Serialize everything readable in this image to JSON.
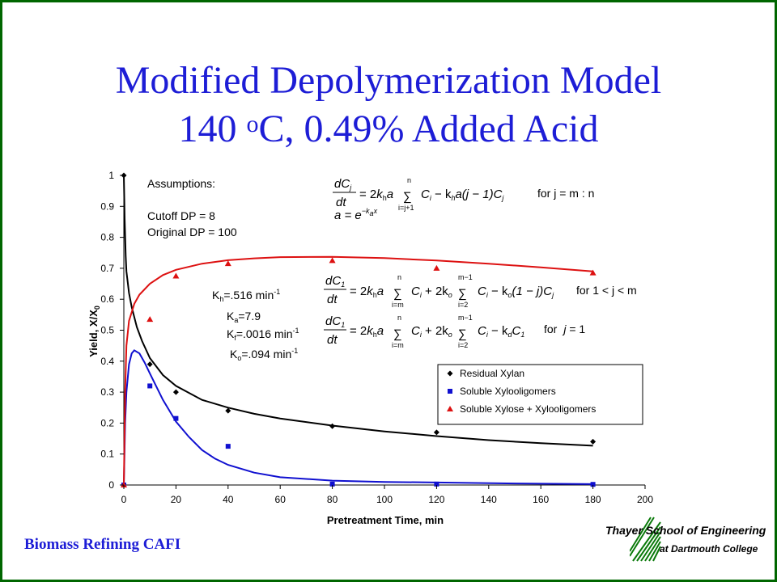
{
  "title": {
    "line1": "Modified Depolymerization Model",
    "line2_pre": "140 ",
    "line2_sup": "o",
    "line2_post": "C, 0.49% Added Acid"
  },
  "footer": {
    "left": "Biomass Refining CAFI",
    "logo_line1": "Thayer School of Engineering",
    "logo_line2": "at Dartmouth College"
  },
  "annotations": {
    "assumptions": "Assumptions:",
    "cutoff": "Cutoff DP = 8",
    "original": "Original DP = 100",
    "kh": "K",
    "kh_sub": "h",
    "kh_val": "=.516 min",
    "kh_exp": "-1",
    "ka": "K",
    "ka_sub": "a",
    "ka_val": "=7.9",
    "kf": "K",
    "kf_sub": "f",
    "kf_val": "=.0016 min",
    "kf_exp": "-1",
    "ko": "K",
    "ko_sub": "o",
    "ko_val": "=.094 min",
    "ko_exp": "-1",
    "cond1": "for j = m : n",
    "cond2": "for 1 < j < m",
    "cond3": "for",
    "cond3_j": "j",
    "cond3_val": " = 1"
  },
  "colors": {
    "residual": "#000000",
    "soluble_oligo": "#1010d0",
    "soluble_xylose": "#dd1111",
    "title": "#1d1dd6",
    "frame": "#006600"
  },
  "chart_data": {
    "type": "scatter",
    "xlabel": "Pretreatment Time, min",
    "ylabel": "Yield, X/X",
    "ylabel_sub": "0",
    "xlim": [
      0,
      200
    ],
    "ylim": [
      0,
      1
    ],
    "xticks": [
      0,
      20,
      40,
      60,
      80,
      100,
      120,
      140,
      160,
      180,
      200
    ],
    "yticks": [
      0,
      0.1,
      0.2,
      0.3,
      0.4,
      0.5,
      0.6,
      0.7,
      0.8,
      0.9,
      1
    ],
    "ytick_labels": [
      "0",
      "0.1",
      "0.2",
      "0.3",
      "0.4",
      "0.5",
      "0.6",
      "0.7",
      "0.8",
      "0.9",
      "1"
    ],
    "legend_position": "right-middle",
    "series": [
      {
        "name": "Residual Xylan",
        "marker": "diamond",
        "color": "#000000",
        "points": [
          [
            0,
            1.0
          ],
          [
            10,
            0.39
          ],
          [
            20,
            0.3
          ],
          [
            40,
            0.24
          ],
          [
            80,
            0.19
          ],
          [
            120,
            0.17
          ],
          [
            180,
            0.14
          ]
        ],
        "fit": [
          [
            0,
            1.0
          ],
          [
            0.3,
            0.86
          ],
          [
            0.7,
            0.74
          ],
          [
            1,
            0.69
          ],
          [
            2,
            0.62
          ],
          [
            3,
            0.575
          ],
          [
            5,
            0.51
          ],
          [
            7,
            0.465
          ],
          [
            10,
            0.41
          ],
          [
            15,
            0.355
          ],
          [
            20,
            0.32
          ],
          [
            30,
            0.275
          ],
          [
            40,
            0.25
          ],
          [
            50,
            0.23
          ],
          [
            60,
            0.215
          ],
          [
            80,
            0.192
          ],
          [
            100,
            0.173
          ],
          [
            120,
            0.158
          ],
          [
            140,
            0.145
          ],
          [
            160,
            0.135
          ],
          [
            180,
            0.127
          ]
        ]
      },
      {
        "name": "Soluble Xylooligomers",
        "marker": "square",
        "color": "#1010d0",
        "points": [
          [
            0,
            0.0
          ],
          [
            10,
            0.32
          ],
          [
            20,
            0.215
          ],
          [
            40,
            0.125
          ],
          [
            80,
            0.003
          ],
          [
            120,
            0.003
          ],
          [
            180,
            0.002
          ]
        ],
        "fit": [
          [
            0,
            0.0
          ],
          [
            0.5,
            0.2
          ],
          [
            1,
            0.3
          ],
          [
            2,
            0.39
          ],
          [
            3,
            0.425
          ],
          [
            4,
            0.435
          ],
          [
            6,
            0.425
          ],
          [
            8,
            0.395
          ],
          [
            10,
            0.36
          ],
          [
            15,
            0.275
          ],
          [
            20,
            0.205
          ],
          [
            25,
            0.155
          ],
          [
            30,
            0.113
          ],
          [
            35,
            0.085
          ],
          [
            40,
            0.065
          ],
          [
            50,
            0.04
          ],
          [
            60,
            0.025
          ],
          [
            80,
            0.014
          ],
          [
            100,
            0.01
          ],
          [
            120,
            0.008
          ],
          [
            150,
            0.005
          ],
          [
            180,
            0.003
          ]
        ]
      },
      {
        "name": "Soluble Xylose + Xylooligomers",
        "marker": "triangle",
        "color": "#dd1111",
        "points": [
          [
            0,
            0.0
          ],
          [
            10,
            0.535
          ],
          [
            20,
            0.675
          ],
          [
            40,
            0.715
          ],
          [
            80,
            0.725
          ],
          [
            120,
            0.7
          ],
          [
            180,
            0.685
          ]
        ],
        "fit": [
          [
            0,
            0.0
          ],
          [
            0.5,
            0.3
          ],
          [
            1,
            0.45
          ],
          [
            2,
            0.53
          ],
          [
            4,
            0.585
          ],
          [
            6,
            0.615
          ],
          [
            10,
            0.65
          ],
          [
            15,
            0.678
          ],
          [
            20,
            0.695
          ],
          [
            30,
            0.715
          ],
          [
            40,
            0.726
          ],
          [
            50,
            0.732
          ],
          [
            60,
            0.736
          ],
          [
            80,
            0.737
          ],
          [
            100,
            0.733
          ],
          [
            120,
            0.725
          ],
          [
            140,
            0.715
          ],
          [
            160,
            0.703
          ],
          [
            180,
            0.69
          ]
        ]
      }
    ]
  }
}
